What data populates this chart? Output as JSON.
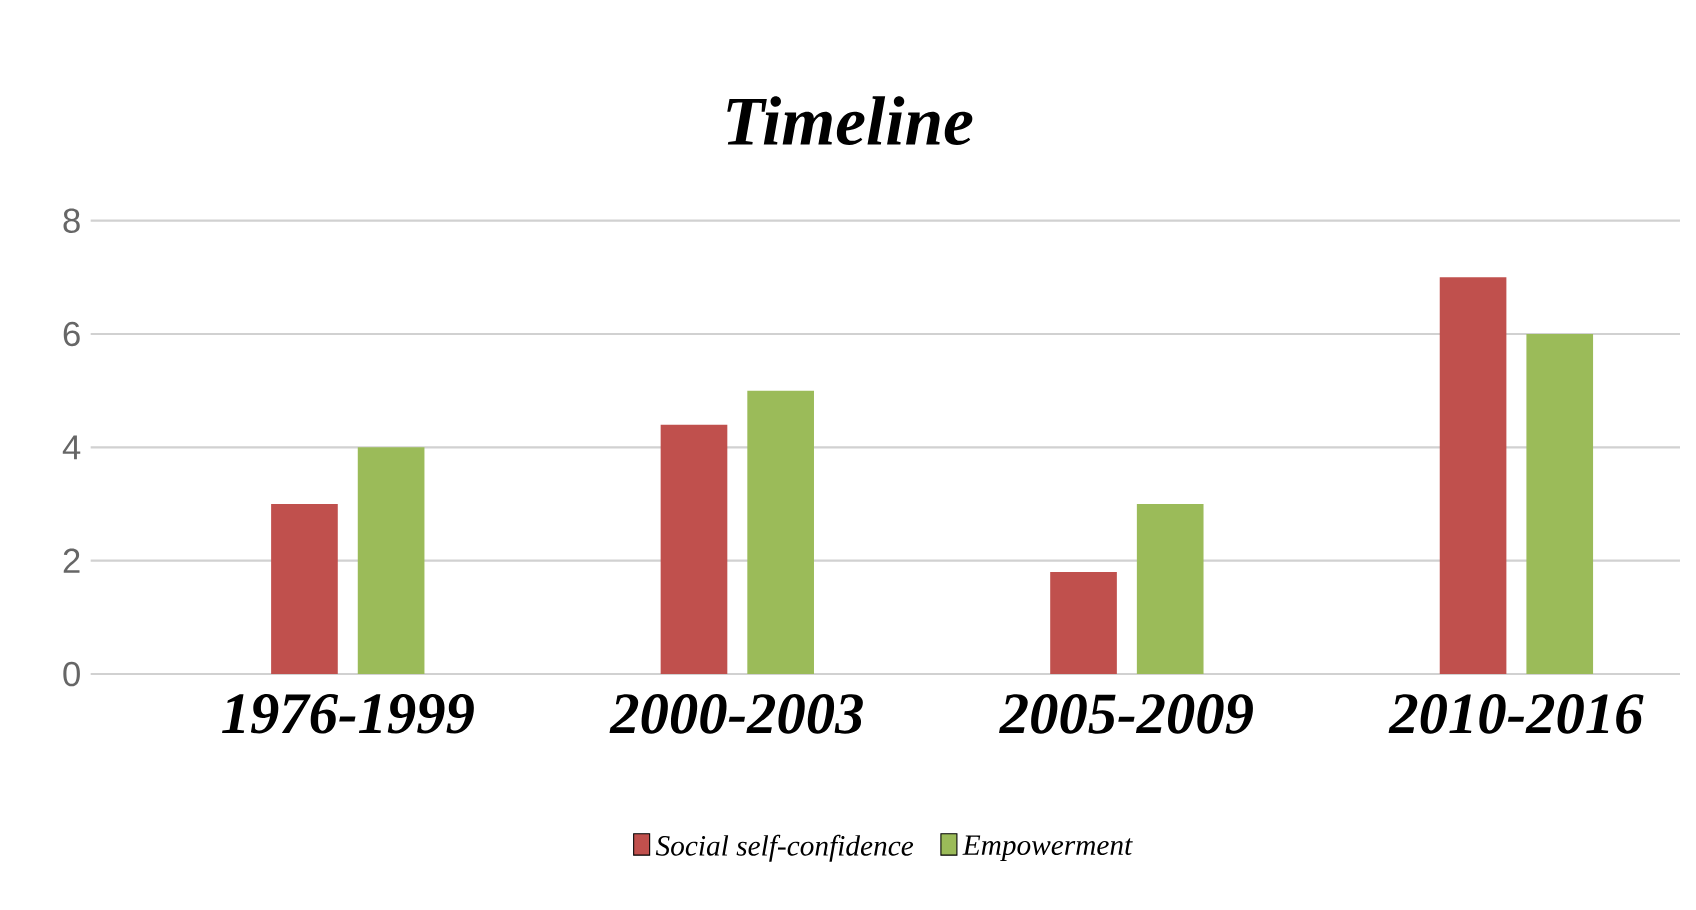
{
  "chart_data": {
    "type": "bar",
    "title": "Timeline",
    "categories": [
      "1976-1999",
      "2000-2003",
      "2005-2009",
      "2010-2016"
    ],
    "series": [
      {
        "name": "Social self-confidence",
        "color": "#c0504d",
        "values": [
          3,
          4.4,
          1.8,
          7
        ]
      },
      {
        "name": "Empowerment",
        "color": "#9bbb59",
        "values": [
          4,
          5,
          3,
          6
        ]
      }
    ],
    "ylim": [
      0,
      8
    ],
    "yticks": [
      0,
      2,
      4,
      6,
      8
    ],
    "grid": "y",
    "legend": "bottom"
  }
}
